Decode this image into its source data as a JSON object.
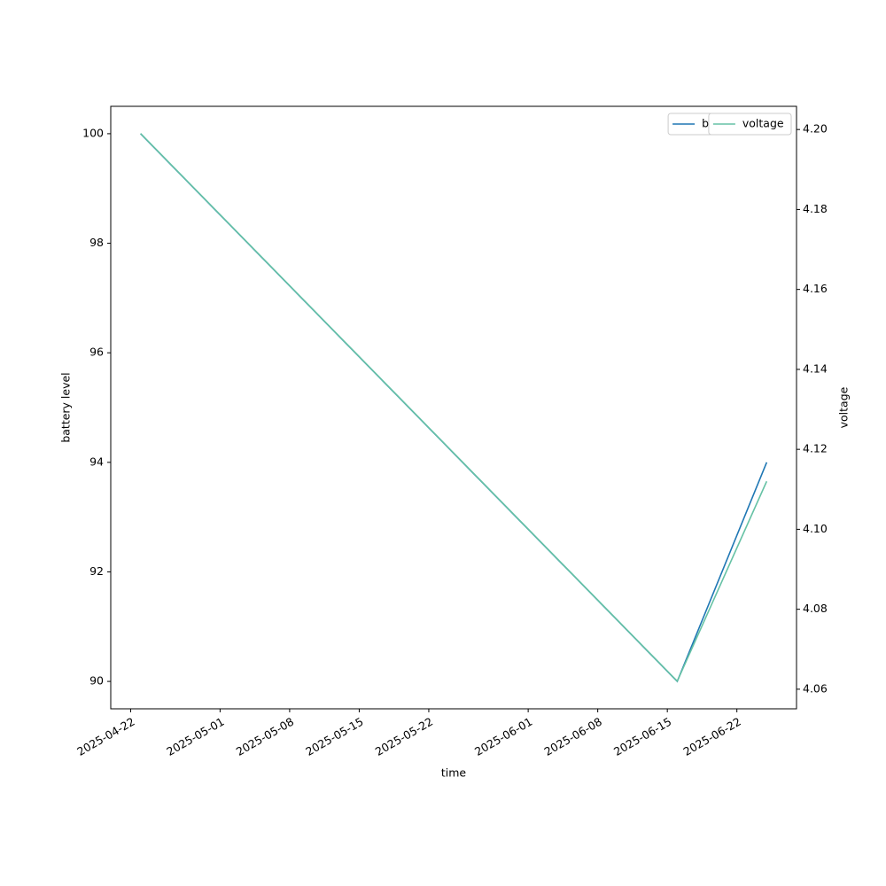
{
  "chart_data": {
    "type": "line",
    "xlabel": "time",
    "ylabel": "battery level",
    "y2label": "voltage",
    "x": [
      "2025-04-23",
      "2025-06-16",
      "2025-06-25"
    ],
    "series": [
      {
        "name": "battery level",
        "color": "#1f77b4",
        "values": [
          100,
          90,
          94
        ]
      },
      {
        "name": "voltage",
        "color": "#66c2a5",
        "axis": "y2",
        "values": [
          4.199,
          4.062,
          4.112
        ]
      }
    ],
    "xlim": [
      "2025-04-20",
      "2025-06-28"
    ],
    "xticks": [
      "2025-04-22",
      "2025-05-01",
      "2025-05-08",
      "2025-05-15",
      "2025-05-22",
      "2025-06-01",
      "2025-06-08",
      "2025-06-15",
      "2025-06-22"
    ],
    "ylim": [
      89.5,
      100.5
    ],
    "yticks": [
      90,
      92,
      94,
      96,
      98,
      100
    ],
    "y2lim": [
      4.0551,
      4.2058
    ],
    "y2ticks": [
      4.06,
      4.08,
      {
        "value": 4.1,
        "label": "4.10"
      },
      4.12,
      4.14,
      4.16,
      4.18,
      {
        "value": 4.2,
        "label": "4.20"
      }
    ],
    "legend": "upper right"
  }
}
